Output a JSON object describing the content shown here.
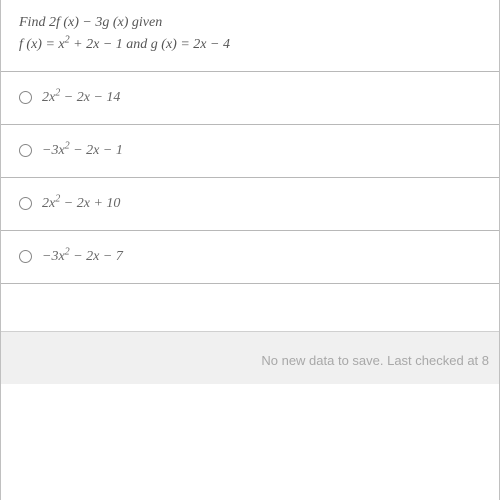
{
  "colors": {
    "page_bg": "#e8e8e8",
    "card_bg": "#ffffff",
    "border": "#b8b8b8",
    "text": "#555555",
    "option_text": "#666666",
    "status_text": "#a8a8a8"
  },
  "question": {
    "line1_html": "Find 2<i>f</i> (<i>x</i>) &minus; 3<i>g</i> (<i>x</i>) <i>given</i>",
    "line2_html": "<i>f</i> (<i>x</i>) = <i>x</i><sup>2</sup> + 2<i>x</i> &minus; 1 <i>and g</i> (<i>x</i>) = 2<i>x</i> &minus; 4"
  },
  "options": [
    {
      "id": "opt-a",
      "html": "2<i>x</i><sup>2</sup> &minus; 2<i>x</i> &minus; 14",
      "selected": false
    },
    {
      "id": "opt-b",
      "html": "&minus;3<i>x</i><sup>2</sup> &minus; 2<i>x</i> &minus; 1",
      "selected": false
    },
    {
      "id": "opt-c",
      "html": "2<i>x</i><sup>2</sup> &minus; 2<i>x</i> + 10",
      "selected": false
    },
    {
      "id": "opt-d",
      "html": "&minus;3<i>x</i><sup>2</sup> &minus; 2<i>x</i> &minus; 7",
      "selected": false
    }
  ],
  "status": {
    "message": "No new data to save. Last checked at 8"
  }
}
